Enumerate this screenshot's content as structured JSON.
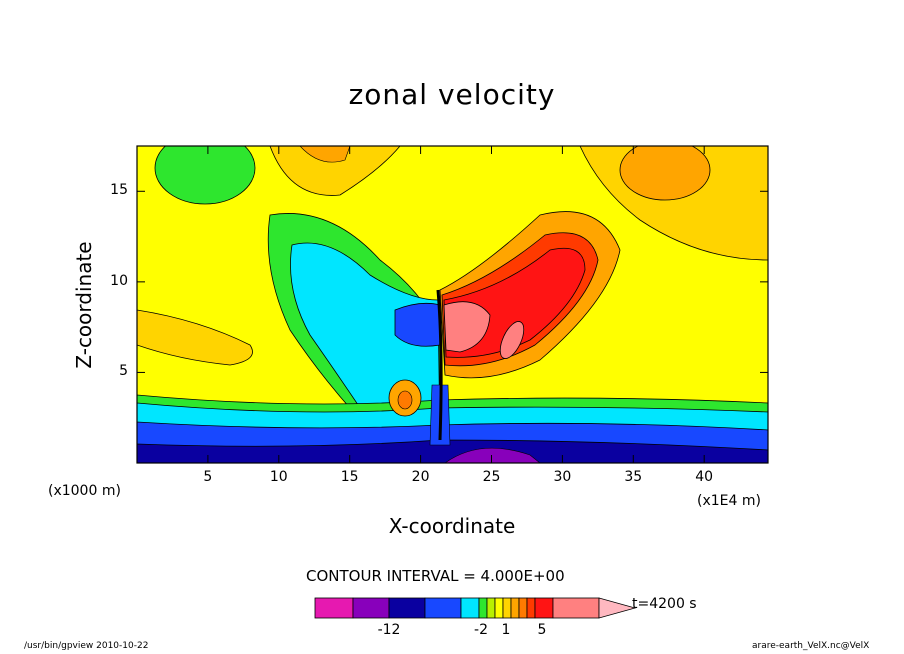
{
  "chart_data": {
    "type": "contour",
    "title": "zonal velocity",
    "xlabel": "X-coordinate",
    "ylabel": "Z-coordinate",
    "x_unit_left": "(x1000 m)",
    "x_unit_right": "(x1E4 m)",
    "x_ticks": [
      "5",
      "10",
      "15",
      "20",
      "25",
      "30",
      "35",
      "40"
    ],
    "y_ticks": [
      "5",
      "10",
      "15"
    ],
    "xlim": [
      0,
      44.5
    ],
    "ylim": [
      0,
      17.5
    ],
    "contour_interval_text": "CONTOUR INTERVAL = 4.000E+00",
    "time_text": "t=4200 s",
    "colorbar": {
      "colors": [
        "#e619b0",
        "#8800bb",
        "#0a00a0",
        "#1848ff",
        "#00e6ff",
        "#2ee62e",
        "#b8f000",
        "#ffff00",
        "#ffd400",
        "#ffa500",
        "#ff7a00",
        "#ff3a00",
        "#ff1414",
        "#ff8080",
        "#ffb8c0"
      ],
      "labels": [
        "-12",
        "-2",
        "1",
        "5"
      ]
    }
  },
  "footer": {
    "left": "/usr/bin/gpview  2010-10-22",
    "right": "arare-earth_VelX.nc@VelX"
  }
}
